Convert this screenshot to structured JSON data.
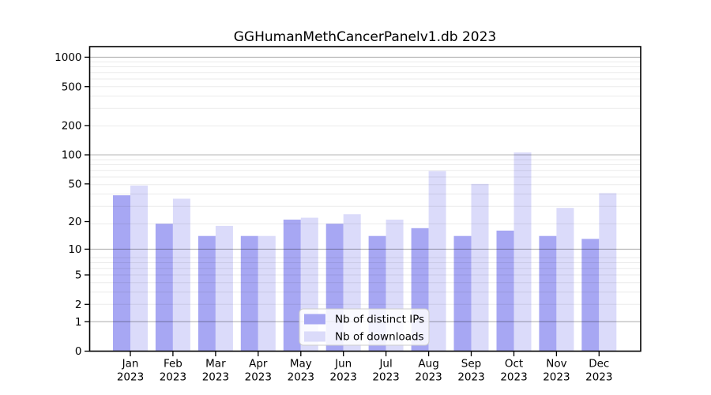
{
  "chart_data": {
    "type": "bar",
    "title": "GGHumanMethCancerPanelv1.db 2023",
    "categories": [
      "Jan 2023",
      "Feb 2023",
      "Mar 2023",
      "Apr 2023",
      "May 2023",
      "Jun 2023",
      "Jul 2023",
      "Aug 2023",
      "Sep 2023",
      "Oct 2023",
      "Nov 2023",
      "Dec 2023"
    ],
    "series": [
      {
        "name": "Nb of distinct IPs",
        "color": "#a7a7f3",
        "values": [
          38,
          19,
          14,
          14,
          21,
          19,
          14,
          17,
          14,
          16,
          14,
          13
        ]
      },
      {
        "name": "Nb of downloads",
        "color": "#dbdbfa",
        "values": [
          48,
          35,
          18,
          14,
          22,
          24,
          21,
          68,
          50,
          106,
          28,
          40
        ]
      }
    ],
    "xlabel": "",
    "ylabel": "",
    "y_axis": {
      "scale": "log1p",
      "tick_values": [
        0,
        1,
        2,
        5,
        10,
        20,
        50,
        100,
        200,
        500,
        1000
      ],
      "major_gridline_values": [
        1,
        10,
        100,
        1000
      ],
      "ylim": [
        0,
        1285
      ]
    },
    "legend": {
      "position": "inside-bottom-center"
    },
    "grid": true,
    "colors": {
      "major_grid": "#b4b4b4",
      "minor_grid": "#ebebeb",
      "axis": "#000000",
      "background": "#ffffff"
    }
  }
}
